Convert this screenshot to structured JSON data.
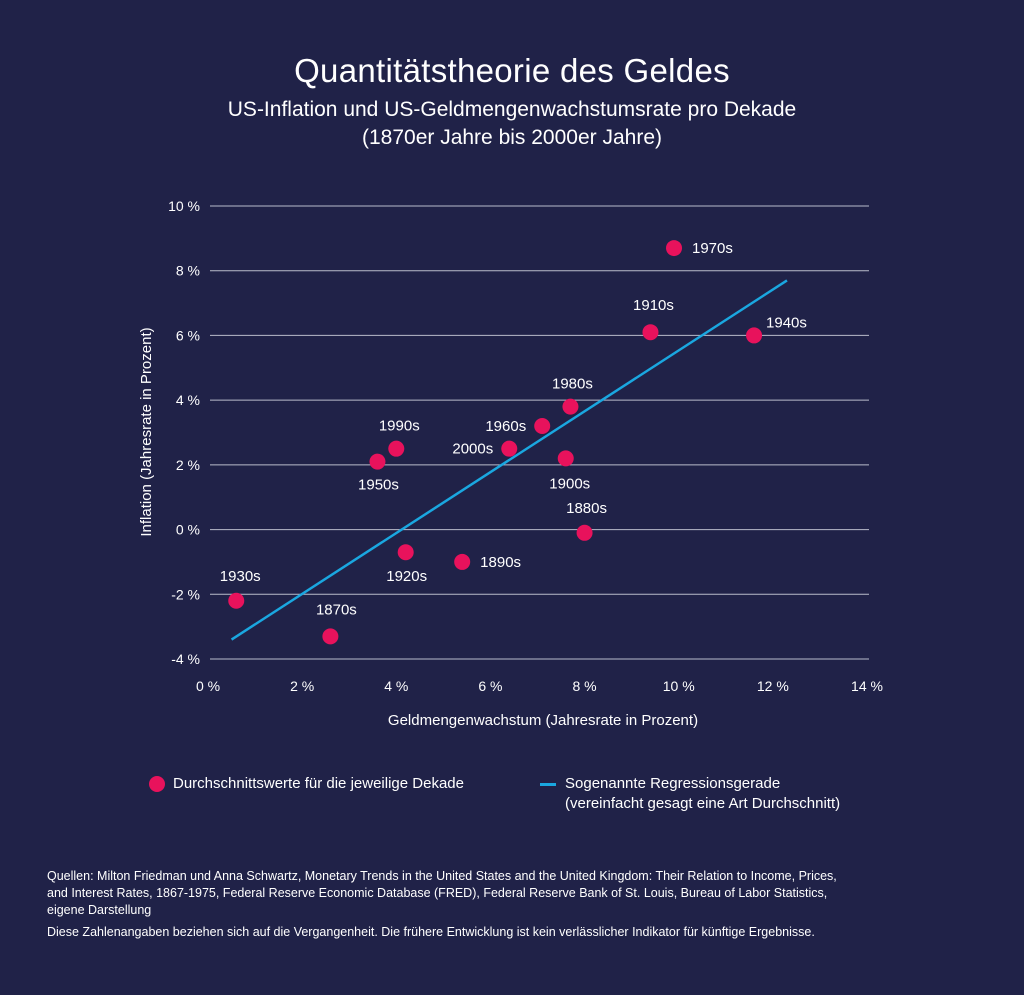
{
  "header": {
    "title": "Quantitätstheorie des Geldes",
    "subtitle_line1": "US-Inflation und US-Geldmengenwachstumsrate pro Dekade",
    "subtitle_line2": "(1870er Jahre bis 2000er Jahre)"
  },
  "chart_data": {
    "type": "scatter",
    "xlabel": "Geldmengenwachstum (Jahresrate in Prozent)",
    "ylabel": "Inflation (Jahresrate in Prozent)",
    "xlim": [
      0,
      14
    ],
    "ylim": [
      -4,
      10
    ],
    "x_ticks": [
      0,
      2,
      4,
      6,
      8,
      10,
      12,
      14
    ],
    "x_tick_labels": [
      "0 %",
      "2 %",
      "4 %",
      "6 %",
      "8 %",
      "10 %",
      "12 %",
      "14 %"
    ],
    "y_ticks": [
      10,
      8,
      6,
      4,
      2,
      0,
      -2,
      -4
    ],
    "y_tick_labels": [
      "10 %",
      "8 %",
      "6 %",
      "4 %",
      "2 %",
      "0 %",
      "-2 %",
      "-4 %"
    ],
    "grid": "horizontal",
    "points": [
      {
        "label": "1870s",
        "x": 2.6,
        "y": -3.3
      },
      {
        "label": "1880s",
        "x": 8.0,
        "y": -0.1
      },
      {
        "label": "1890s",
        "x": 5.4,
        "y": -1.0
      },
      {
        "label": "1900s",
        "x": 7.6,
        "y": 2.2
      },
      {
        "label": "1910s",
        "x": 9.4,
        "y": 6.1
      },
      {
        "label": "1920s",
        "x": 4.2,
        "y": -0.7
      },
      {
        "label": "1930s",
        "x": 0.6,
        "y": -2.2
      },
      {
        "label": "1940s",
        "x": 11.6,
        "y": 6.0
      },
      {
        "label": "1950s",
        "x": 3.6,
        "y": 2.1
      },
      {
        "label": "1960s",
        "x": 7.1,
        "y": 3.2
      },
      {
        "label": "1970s",
        "x": 9.9,
        "y": 8.7
      },
      {
        "label": "1980s",
        "x": 7.7,
        "y": 3.8
      },
      {
        "label": "1990s",
        "x": 4.0,
        "y": 2.5
      },
      {
        "label": "2000s",
        "x": 6.4,
        "y": 2.5
      }
    ],
    "regression_line": {
      "x": [
        0.5,
        12.3
      ],
      "y": [
        -3.4,
        7.7
      ]
    },
    "colors": {
      "point": "#e8125c",
      "regression": "#1aa7e0",
      "grid": "#b9bccb",
      "background": "#202248"
    },
    "legend": {
      "position": "bottom",
      "points_label": "Durchschnittswerte für die jeweilige Dekade",
      "line_label_line1": "Sogenannte Regressionsgerade",
      "line_label_line2": "(vereinfacht gesagt eine Art Durchschnitt)"
    }
  },
  "footer": {
    "sources_line1": "Quellen: Milton Friedman und Anna Schwartz, Monetary Trends in the United States and the United Kingdom: Their Relation to Income, Prices,",
    "sources_line2": "and Interest Rates, 1867-1975, Federal Reserve Economic Database (FRED), Federal Reserve Bank of St. Louis, Bureau of Labor Statistics,",
    "sources_line3": "eigene Darstellung",
    "disclaimer": "Diese Zahlenangaben beziehen sich auf die Vergangenheit. Die frühere Entwicklung ist kein verlässlicher Indikator für künftige Ergebnisse."
  }
}
